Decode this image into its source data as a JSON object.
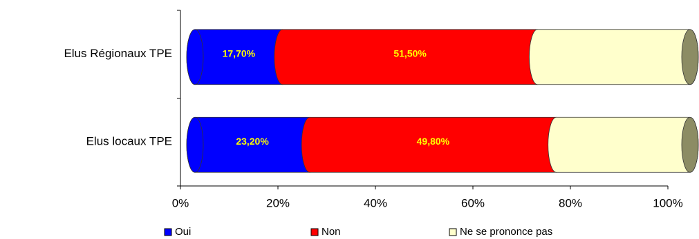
{
  "chart_data": {
    "type": "stacked-bar-horizontal",
    "categories": [
      "Elus Régionaux TPE",
      "Elus locaux TPE"
    ],
    "series": [
      {
        "name": "Oui",
        "color": "#0000ff",
        "values": [
          17.7,
          23.2
        ],
        "value_labels": [
          "17,70%",
          "23,20%"
        ]
      },
      {
        "name": "Non",
        "color": "#ff0000",
        "values": [
          51.5,
          49.8
        ],
        "value_labels": [
          "51,50%",
          "49,80%"
        ]
      },
      {
        "name": "Ne se prononce pas",
        "color": "#ffffcc",
        "values": [
          30.8,
          27.0
        ]
      }
    ],
    "xlim": [
      0,
      100
    ],
    "xticks": [
      {
        "value": 0,
        "label": "0%"
      },
      {
        "value": 20,
        "label": "20%"
      },
      {
        "value": 40,
        "label": "40%"
      },
      {
        "value": 60,
        "label": "60%"
      },
      {
        "value": 80,
        "label": "80%"
      },
      {
        "value": 100,
        "label": "100%"
      }
    ],
    "legend": "bottom"
  }
}
